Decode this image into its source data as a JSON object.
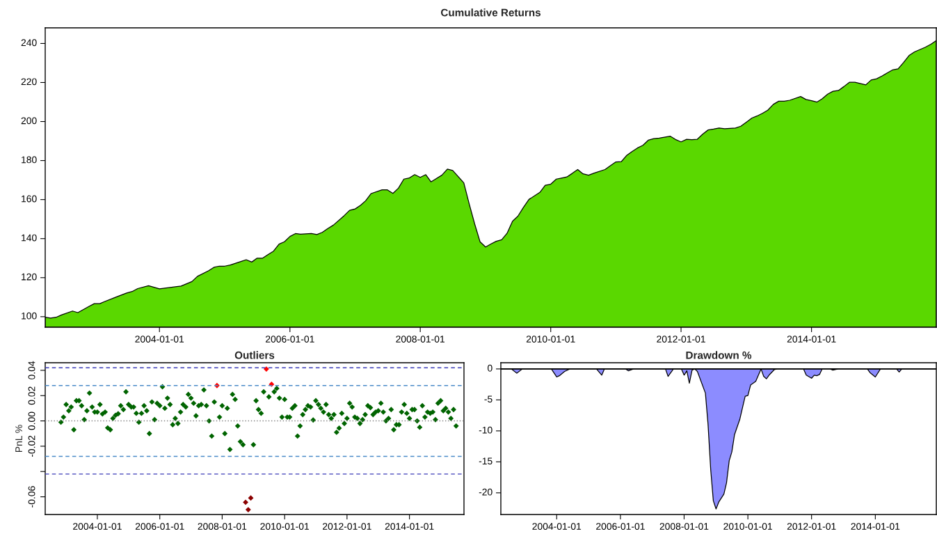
{
  "chart_data": [
    {
      "type": "area",
      "title": "Cumulative Returns",
      "color": "#5ad800",
      "x": [
        "2002-04",
        "2002-05",
        "2002-06",
        "2002-07",
        "2002-09",
        "2002-10",
        "2002-12",
        "2003-01",
        "2003-02",
        "2003-03",
        "2003-05",
        "2003-07",
        "2003-08",
        "2003-09",
        "2003-11",
        "2004-01",
        "2004-05",
        "2004-07",
        "2004-08",
        "2004-10",
        "2004-11",
        "2004-12",
        "2005-01",
        "2005-02",
        "2005-04",
        "2005-05",
        "2005-06",
        "2005-07",
        "2005-08",
        "2005-09",
        "2005-10",
        "2005-11",
        "2005-12",
        "2006-01",
        "2006-02",
        "2006-03",
        "2006-05",
        "2006-06",
        "2006-07",
        "2006-08",
        "2006-09",
        "2006-11",
        "2006-12",
        "2007-01",
        "2007-02",
        "2007-03",
        "2007-04",
        "2007-06",
        "2007-07",
        "2007-08",
        "2007-09",
        "2007-10",
        "2007-11",
        "2007-12",
        "2008-01",
        "2008-02",
        "2008-03",
        "2008-05",
        "2008-06",
        "2008-07",
        "2008-09",
        "2008-10",
        "2008-11",
        "2008-12",
        "2009-01",
        "2009-02",
        "2009-03",
        "2009-04",
        "2009-05",
        "2009-06",
        "2009-07",
        "2009-08",
        "2009-09",
        "2009-11",
        "2009-12",
        "2010-01",
        "2010-02",
        "2010-03",
        "2010-04",
        "2010-05",
        "2010-06",
        "2010-07",
        "2010-08",
        "2010-09",
        "2010-11",
        "2010-12",
        "2011-01",
        "2011-02",
        "2011-03",
        "2011-04",
        "2011-05",
        "2011-06",
        "2011-07",
        "2011-08",
        "2011-09",
        "2011-11",
        "2011-12",
        "2012-01",
        "2012-02",
        "2012-03",
        "2012-04",
        "2012-05",
        "2012-06",
        "2012-07",
        "2012-08",
        "2012-09",
        "2012-11",
        "2012-12",
        "2013-01",
        "2013-02",
        "2013-03",
        "2013-04",
        "2013-05",
        "2013-06",
        "2013-07",
        "2013-08",
        "2013-09",
        "2013-11",
        "2013-12",
        "2014-01",
        "2014-02",
        "2014-03",
        "2014-04",
        "2014-05",
        "2014-06",
        "2014-07",
        "2014-08",
        "2014-09",
        "2014-11",
        "2014-12",
        "2015-01",
        "2015-02",
        "2015-03",
        "2015-04",
        "2015-05",
        "2015-06",
        "2015-07",
        "2015-08",
        "2015-10",
        "2015-11",
        "2015-12"
      ],
      "values": [
        99.7,
        99.3,
        99.7,
        100.9,
        102.9,
        102.1,
        105.2,
        106.7,
        106.7,
        107.8,
        110,
        112.1,
        112.9,
        114.4,
        115.9,
        114.3,
        115.7,
        118,
        120.7,
        123.5,
        125.3,
        125.9,
        125.9,
        126.5,
        128.3,
        129.2,
        128,
        130,
        130,
        131.9,
        133.6,
        137.2,
        138.4,
        141.1,
        142.6,
        142.3,
        142.6,
        142.1,
        143.2,
        145.2,
        146.9,
        151.8,
        154.5,
        155.2,
        157.1,
        159.4,
        163.1,
        165,
        165,
        163.2,
        165.9,
        170.5,
        171.1,
        172.8,
        171.4,
        172.8,
        169.1,
        172.5,
        175.6,
        174.9,
        168.6,
        157.9,
        147.5,
        138.4,
        135.7,
        137.3,
        138.6,
        139.4,
        142.7,
        148.9,
        151.5,
        156,
        160.1,
        163.7,
        167.3,
        167.9,
        170.5,
        171,
        171.6,
        173.4,
        175.4,
        173.2,
        172.5,
        173.6,
        175.4,
        177.4,
        179.3,
        179.5,
        182.5,
        184.6,
        186.4,
        187.8,
        190.4,
        191.2,
        191.5,
        192.5,
        190.8,
        189.6,
        190.9,
        190.7,
        190.9,
        193.5,
        195.7,
        196.1,
        196.7,
        196.3,
        196.7,
        197.6,
        199.7,
        201.8,
        202.8,
        204.2,
        205.8,
        208.8,
        210.4,
        210.4,
        210.9,
        212.8,
        211.3,
        210.7,
        210,
        211.6,
        214,
        215.5,
        215.9,
        217.9,
        220.1,
        220.1,
        218.8,
        221.3,
        221.9,
        223.4,
        224.9,
        226.5,
        227,
        230.3,
        233.8,
        235.7,
        238.1,
        239.6,
        241.5
      ],
      "xlim": [
        "2002-04",
        "2015-12"
      ],
      "xticks": [
        "2004-01-01",
        "2006-01-01",
        "2008-01-01",
        "2010-01-01",
        "2012-01-01",
        "2014-01-01"
      ],
      "ylim": [
        94.6,
        248
      ],
      "yticks": [
        100,
        120,
        140,
        160,
        180,
        200,
        220,
        240
      ]
    },
    {
      "type": "scatter",
      "title": "Outliers",
      "ylabel": "PnL %",
      "marker": "diamond",
      "series": [
        {
          "color": "#006400",
          "x": [
            "2002-11",
            "2002-12",
            "2003-01",
            "2003-02",
            "2003-03",
            "2003-04",
            "2003-05",
            "2003-06",
            "2003-07",
            "2003-08",
            "2003-09",
            "2003-10",
            "2003-11",
            "2003-12",
            "2004-01",
            "2004-02",
            "2004-03",
            "2004-04",
            "2004-05",
            "2004-06",
            "2004-07",
            "2004-08",
            "2004-09",
            "2004-10",
            "2004-11",
            "2004-12",
            "2005-01",
            "2005-02",
            "2005-03",
            "2005-04",
            "2005-05",
            "2005-06",
            "2005-07",
            "2005-08",
            "2005-09",
            "2005-10",
            "2005-11",
            "2005-12",
            "2006-01",
            "2006-02",
            "2006-03",
            "2006-04",
            "2006-05",
            "2006-06",
            "2006-07",
            "2006-08",
            "2006-09",
            "2006-10",
            "2006-11",
            "2006-12",
            "2007-01",
            "2007-02",
            "2007-03",
            "2007-04",
            "2007-05",
            "2007-06",
            "2007-07",
            "2007-08",
            "2007-09",
            "2007-10",
            "2007-12",
            "2008-01",
            "2008-02",
            "2008-03",
            "2008-04",
            "2008-05",
            "2008-06",
            "2008-07",
            "2008-08",
            "2008-09",
            "2009-01",
            "2009-02",
            "2009-03",
            "2009-04",
            "2009-05",
            "2009-07",
            "2009-09",
            "2009-10",
            "2009-11",
            "2009-12",
            "2010-01",
            "2010-02",
            "2010-03",
            "2010-04",
            "2010-05",
            "2010-06",
            "2010-07",
            "2010-08",
            "2010-09",
            "2010-10",
            "2010-11",
            "2010-12",
            "2011-01",
            "2011-02",
            "2011-03",
            "2011-04",
            "2011-05",
            "2011-06",
            "2011-07",
            "2011-08",
            "2011-09",
            "2011-10",
            "2011-11",
            "2011-12",
            "2012-01",
            "2012-02",
            "2012-03",
            "2012-04",
            "2012-05",
            "2012-06",
            "2012-07",
            "2012-08",
            "2012-09",
            "2012-10",
            "2012-11",
            "2012-12",
            "2013-01",
            "2013-02",
            "2013-03",
            "2013-04",
            "2013-05",
            "2013-06",
            "2013-07",
            "2013-08",
            "2013-09",
            "2013-10",
            "2013-11",
            "2013-12",
            "2014-01",
            "2014-02",
            "2014-03",
            "2014-04",
            "2014-05",
            "2014-06",
            "2014-07",
            "2014-08",
            "2014-09",
            "2014-10",
            "2014-11",
            "2014-12",
            "2015-01",
            "2015-02",
            "2015-03",
            "2015-04",
            "2015-05",
            "2015-06",
            "2015-07"
          ],
          "values": [
            -0.001,
            0.003,
            0.013,
            0.008,
            0.011,
            -0.007,
            0.016,
            0.016,
            0.012,
            0.001,
            0.008,
            0.022,
            0.011,
            0.007,
            0.007,
            0.013,
            0.0055,
            0.007,
            -0.0055,
            -0.007,
            0.002,
            0.0045,
            0.0057,
            0.012,
            0.009,
            0.023,
            0.013,
            0.011,
            0.011,
            0.006,
            -0.001,
            0.006,
            0.012,
            0.008,
            -0.01,
            0.015,
            0.001,
            0.014,
            0.012,
            0.027,
            0.01,
            0.018,
            0.013,
            -0.003,
            0.002,
            -0.002,
            0.007,
            0.013,
            0.011,
            0.021,
            0.018,
            0.014,
            0.004,
            0.012,
            0.013,
            0.0245,
            0.012,
            0.0,
            -0.012,
            0.015,
            0.003,
            0.012,
            -0.01,
            0.01,
            -0.0226,
            0.021,
            0.017,
            -0.004,
            -0.0164,
            -0.0188,
            -0.0188,
            0.016,
            0.009,
            0.006,
            0.023,
            0.019,
            0.023,
            0.0257,
            0.018,
            0.003,
            0.017,
            0.003,
            0.003,
            0.01,
            0.012,
            -0.012,
            -0.004,
            0.005,
            0.009,
            0.012,
            0.011,
            0.0007,
            0.016,
            0.013,
            0.01,
            0.007,
            0.013,
            0.005,
            0.002,
            0.005,
            -0.009,
            -0.0057,
            0.006,
            -0.002,
            0.002,
            0.014,
            0.011,
            0.003,
            0.002,
            -0.002,
            0.001,
            0.005,
            0.012,
            0.0105,
            0.005,
            0.007,
            0.008,
            0.014,
            0.007,
            0.0,
            0.002,
            0.009,
            -0.007,
            -0.003,
            -0.003,
            0.007,
            0.013,
            0.006,
            0.002,
            0.009,
            0.009,
            0.0,
            -0.005,
            0.012,
            0.003,
            0.007,
            0.006,
            0.007,
            0.001,
            0.014,
            0.016,
            0.008,
            0.01,
            0.007,
            0.002,
            0.009,
            -0.004
          ]
        },
        {
          "color": "#ff0000",
          "x": [
            "2007-11",
            "2009-06",
            "2009-08"
          ],
          "values": [
            0.028,
            0.041,
            0.029
          ]
        },
        {
          "color": "#8b0000",
          "x": [
            "2008-10",
            "2008-11",
            "2008-12"
          ],
          "values": [
            -0.0643,
            -0.0702,
            -0.0609
          ]
        }
      ],
      "ref_lines": [
        {
          "axis": "y",
          "value": 0.042,
          "color": "#3a3ab8",
          "line_style": "dashed"
        },
        {
          "axis": "y",
          "value": 0.028,
          "color": "#4a8ac8",
          "line_style": "dashed"
        },
        {
          "axis": "y",
          "value": 0,
          "color": "#808080",
          "line_style": "dotted"
        },
        {
          "axis": "y",
          "value": -0.028,
          "color": "#4a8ac8",
          "line_style": "dashed"
        },
        {
          "axis": "y",
          "value": -0.042,
          "color": "#3a3ab8",
          "line_style": "dashed"
        }
      ],
      "xlim": [
        "2002-05",
        "2015-10"
      ],
      "xticks": [
        "2004-01-01",
        "2006-01-01",
        "2008-01-01",
        "2010-01-01",
        "2012-01-01",
        "2014-01-01"
      ],
      "ylim": [
        -0.074,
        0.046
      ],
      "yticks": [
        {
          "value": -0.06,
          "label": "-0.06"
        },
        {
          "value": -0.04,
          "label": null
        },
        {
          "value": -0.02,
          "label": "-0.02"
        },
        {
          "value": 0,
          "label": "0.00"
        },
        {
          "value": 0.02,
          "label": "0.02"
        },
        {
          "value": 0.04,
          "label": "0.04"
        }
      ]
    },
    {
      "type": "area",
      "title": "Drawdown %",
      "color": "#8c8cff",
      "x": [
        "2002-04",
        "2002-08",
        "2002-10",
        "2002-12",
        "2003-11",
        "2004-01",
        "2004-02",
        "2004-04",
        "2004-06",
        "2005-04",
        "2005-06",
        "2005-07",
        "2006-03",
        "2006-04",
        "2006-06",
        "2007-06",
        "2007-07",
        "2007-09",
        "2007-12",
        "2008-01",
        "2008-02",
        "2008-03",
        "2008-04",
        "2008-05",
        "2008-06",
        "2008-09",
        "2008-10",
        "2008-11",
        "2008-12",
        "2009-01",
        "2009-02",
        "2009-04",
        "2009-05",
        "2009-06",
        "2009-07",
        "2009-08",
        "2009-10",
        "2009-11",
        "2009-12",
        "2010-01",
        "2010-02",
        "2010-04",
        "2010-06",
        "2010-07",
        "2010-08",
        "2010-09",
        "2010-11",
        "2010-12",
        "2011-10",
        "2011-11",
        "2012-01",
        "2012-02",
        "2012-03",
        "2012-04",
        "2012-05",
        "2012-08",
        "2012-09",
        "2012-11",
        "2013-10",
        "2013-11",
        "2014-01",
        "2014-03",
        "2014-09",
        "2014-10",
        "2014-11",
        "2015-12"
      ],
      "values": [
        0,
        0,
        -0.7,
        0,
        0,
        -1.3,
        -1.1,
        -0.4,
        0,
        0,
        -1.0,
        0,
        0,
        -0.3,
        0,
        0,
        -1.2,
        0,
        0,
        -1.0,
        -0.3,
        -2.3,
        -0.2,
        0,
        -0.4,
        -3.9,
        -8.9,
        -16.3,
        -21.3,
        -22.6,
        -21.5,
        -20.2,
        -18.4,
        -14.8,
        -13.4,
        -10.6,
        -8.1,
        -6.2,
        -4.4,
        -4.3,
        -2.6,
        -2.0,
        0,
        -1.2,
        -1.6,
        -1.0,
        -0.1,
        0,
        0,
        -1.0,
        -1.5,
        -1.0,
        -1.1,
        -0.9,
        0,
        0,
        -0.2,
        0,
        0,
        -0.6,
        -1.3,
        0,
        0,
        -0.5,
        0,
        0
      ],
      "ref_lines": [
        {
          "axis": "y",
          "value": 0,
          "color": "#000000",
          "line_style": "solid"
        }
      ],
      "xlim": [
        "2002-04",
        "2015-12"
      ],
      "xticks": [
        "2004-01-01",
        "2006-01-01",
        "2008-01-01",
        "2010-01-01",
        "2012-01-01",
        "2014-01-01"
      ],
      "ylim": [
        -23.5,
        1
      ],
      "yticks": [
        -20,
        -15,
        -10,
        -5,
        0
      ]
    }
  ]
}
